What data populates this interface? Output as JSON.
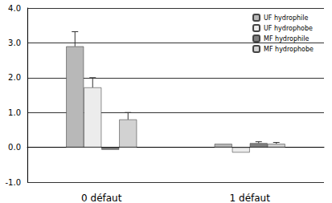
{
  "chart_data": {
    "type": "bar",
    "categories": [
      "0 défaut",
      "1 défaut"
    ],
    "series": [
      {
        "name": "UF hydrophile",
        "color": "#b8b8b8",
        "values": [
          2.9,
          0.1
        ],
        "errors": [
          0.42,
          null
        ]
      },
      {
        "name": "UF hydrophobe",
        "color": "#ececec",
        "values": [
          1.72,
          -0.15
        ],
        "errors": [
          0.28,
          null
        ]
      },
      {
        "name": "MF hydrophile",
        "color": "#7f7f7f",
        "values": [
          -0.07,
          0.12
        ],
        "errors": [
          null,
          0.04
        ]
      },
      {
        "name": "MF hydrophobe",
        "color": "#d2d2d2",
        "values": [
          0.8,
          0.1
        ],
        "errors": [
          0.2,
          0.04
        ]
      }
    ],
    "ylim": [
      -1.0,
      4.0
    ],
    "yticks": [
      {
        "value": -1,
        "label": "-1.0"
      },
      {
        "value": 0,
        "label": "0.0"
      },
      {
        "value": 1,
        "label": "1.0"
      },
      {
        "value": 2,
        "label": "2.0"
      },
      {
        "value": 3,
        "label": "3.0"
      },
      {
        "value": 4,
        "label": "4.0"
      }
    ],
    "grid": true,
    "legend": "upper right"
  }
}
